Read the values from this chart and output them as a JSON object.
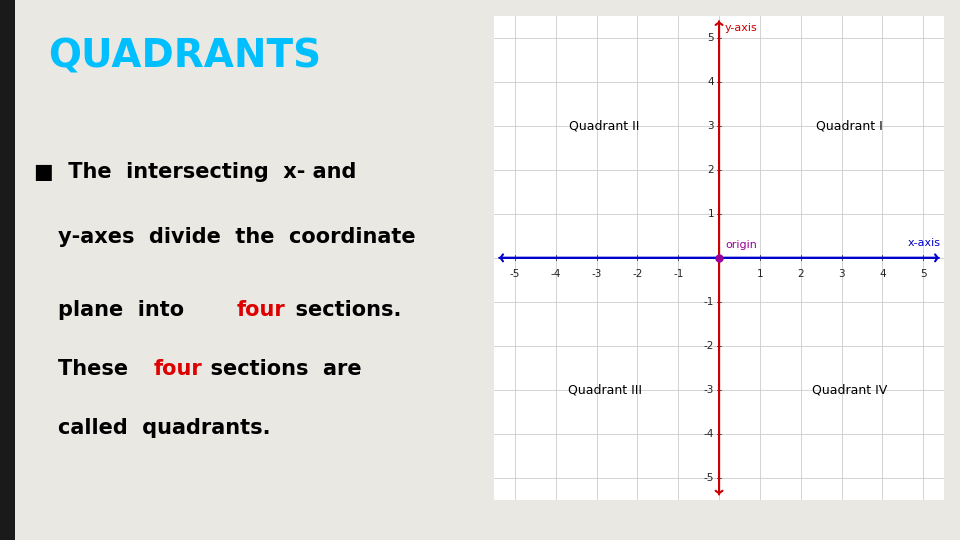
{
  "background_color": "#eae8e3",
  "left_bar_color": "#1a1a1a",
  "title": "QUADRANTS",
  "title_color": "#00bfff",
  "title_fontsize": 28,
  "plot_bg": "#ffffff",
  "plot_xlim": [
    -5.5,
    5.5
  ],
  "plot_ylim": [
    -5.5,
    5.5
  ],
  "axis_color": "#0000cc",
  "yaxis_color": "#cc0000",
  "origin_color": "#990099",
  "grid_color": "#cccccc",
  "quadrant_label_color": "#000000",
  "quadrant_label_fontsize": 9,
  "tick_fontsize": 7.5,
  "text_fontsize": 15,
  "red_color": "#dd0000"
}
